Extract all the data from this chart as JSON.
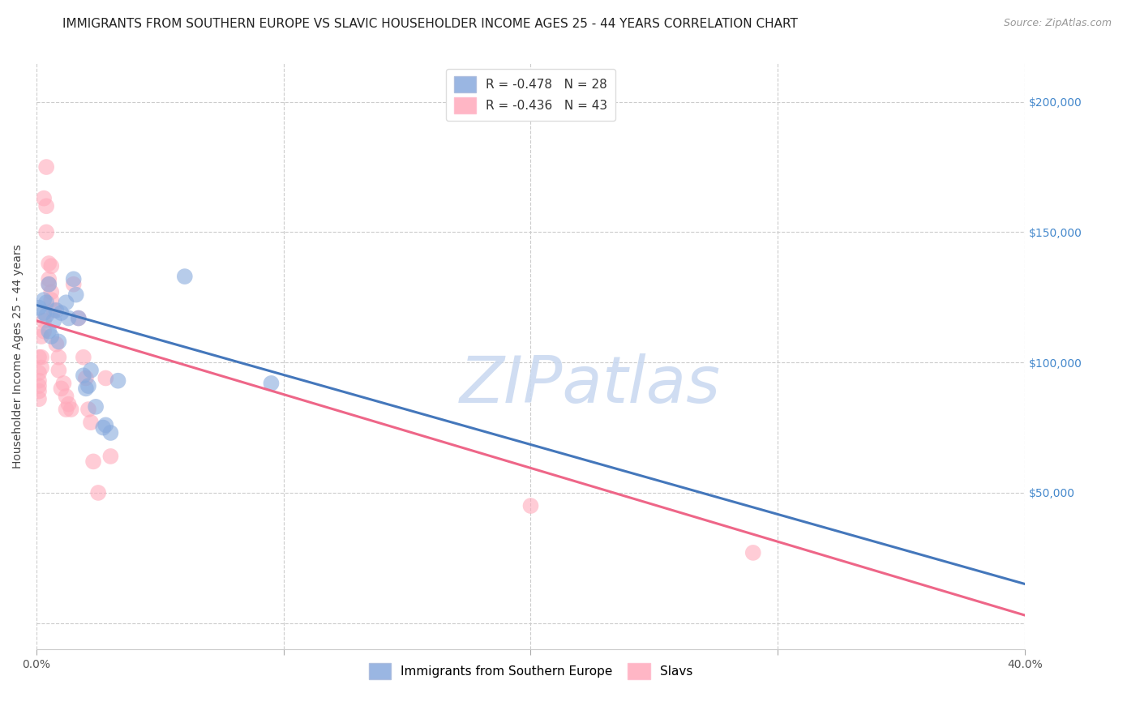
{
  "title": "IMMIGRANTS FROM SOUTHERN EUROPE VS SLAVIC HOUSEHOLDER INCOME AGES 25 - 44 YEARS CORRELATION CHART",
  "source": "Source: ZipAtlas.com",
  "ylabel": "Householder Income Ages 25 - 44 years",
  "xlim": [
    0.0,
    0.4
  ],
  "ylim": [
    -10000,
    215000
  ],
  "yticks": [
    0,
    50000,
    100000,
    150000,
    200000
  ],
  "ytick_labels": [
    "",
    "$50,000",
    "$100,000",
    "$150,000",
    "$200,000"
  ],
  "xticks": [
    0.0,
    0.1,
    0.2,
    0.3,
    0.4
  ],
  "xtick_labels": [
    "0.0%",
    "",
    "",
    "",
    "40.0%"
  ],
  "background_color": "#ffffff",
  "grid_color": "#cccccc",
  "blue_scatter": [
    [
      0.001,
      121000
    ],
    [
      0.003,
      124000
    ],
    [
      0.003,
      119000
    ],
    [
      0.004,
      123000
    ],
    [
      0.004,
      118000
    ],
    [
      0.005,
      130000
    ],
    [
      0.005,
      112000
    ],
    [
      0.006,
      110000
    ],
    [
      0.007,
      116000
    ],
    [
      0.008,
      120000
    ],
    [
      0.009,
      108000
    ],
    [
      0.01,
      119000
    ],
    [
      0.012,
      123000
    ],
    [
      0.013,
      117000
    ],
    [
      0.015,
      132000
    ],
    [
      0.016,
      126000
    ],
    [
      0.017,
      117000
    ],
    [
      0.019,
      95000
    ],
    [
      0.02,
      90000
    ],
    [
      0.021,
      91000
    ],
    [
      0.022,
      97000
    ],
    [
      0.024,
      83000
    ],
    [
      0.027,
      75000
    ],
    [
      0.028,
      76000
    ],
    [
      0.03,
      73000
    ],
    [
      0.033,
      93000
    ],
    [
      0.06,
      133000
    ],
    [
      0.095,
      92000
    ]
  ],
  "pink_scatter": [
    [
      0.001,
      102000
    ],
    [
      0.001,
      96000
    ],
    [
      0.001,
      93000
    ],
    [
      0.001,
      91000
    ],
    [
      0.001,
      89000
    ],
    [
      0.001,
      86000
    ],
    [
      0.002,
      102000
    ],
    [
      0.002,
      98000
    ],
    [
      0.002,
      110000
    ],
    [
      0.003,
      116000
    ],
    [
      0.003,
      112000
    ],
    [
      0.003,
      163000
    ],
    [
      0.004,
      175000
    ],
    [
      0.004,
      160000
    ],
    [
      0.004,
      150000
    ],
    [
      0.005,
      138000
    ],
    [
      0.005,
      130000
    ],
    [
      0.005,
      132000
    ],
    [
      0.006,
      127000
    ],
    [
      0.006,
      137000
    ],
    [
      0.006,
      124000
    ],
    [
      0.007,
      120000
    ],
    [
      0.008,
      107000
    ],
    [
      0.009,
      102000
    ],
    [
      0.009,
      97000
    ],
    [
      0.01,
      90000
    ],
    [
      0.011,
      92000
    ],
    [
      0.012,
      87000
    ],
    [
      0.012,
      82000
    ],
    [
      0.013,
      84000
    ],
    [
      0.014,
      82000
    ],
    [
      0.015,
      130000
    ],
    [
      0.017,
      117000
    ],
    [
      0.019,
      102000
    ],
    [
      0.02,
      94000
    ],
    [
      0.021,
      82000
    ],
    [
      0.022,
      77000
    ],
    [
      0.023,
      62000
    ],
    [
      0.025,
      50000
    ],
    [
      0.028,
      94000
    ],
    [
      0.03,
      64000
    ],
    [
      0.2,
      45000
    ],
    [
      0.29,
      27000
    ]
  ],
  "blue_line_color": "#4477bb",
  "pink_line_color": "#ee6688",
  "blue_line": {
    "x0": 0.0,
    "y0": 122000,
    "x1": 0.4,
    "y1": 15000
  },
  "pink_line": {
    "x0": 0.0,
    "y0": 116000,
    "x1": 0.4,
    "y1": 3000
  },
  "legend_blue_label": "R = -0.478   N = 28",
  "legend_pink_label": "R = -0.436   N = 43",
  "legend_blue_color": "#88aadd",
  "legend_pink_color": "#ffaabb",
  "bottom_legend": [
    "Immigrants from Southern Europe",
    "Slavs"
  ],
  "title_fontsize": 11,
  "source_fontsize": 9,
  "axis_label_fontsize": 10,
  "tick_fontsize": 10,
  "right_tick_color": "#4488cc",
  "watermark_text": "ZIPatlas",
  "watermark_color": "#c8d8f0"
}
